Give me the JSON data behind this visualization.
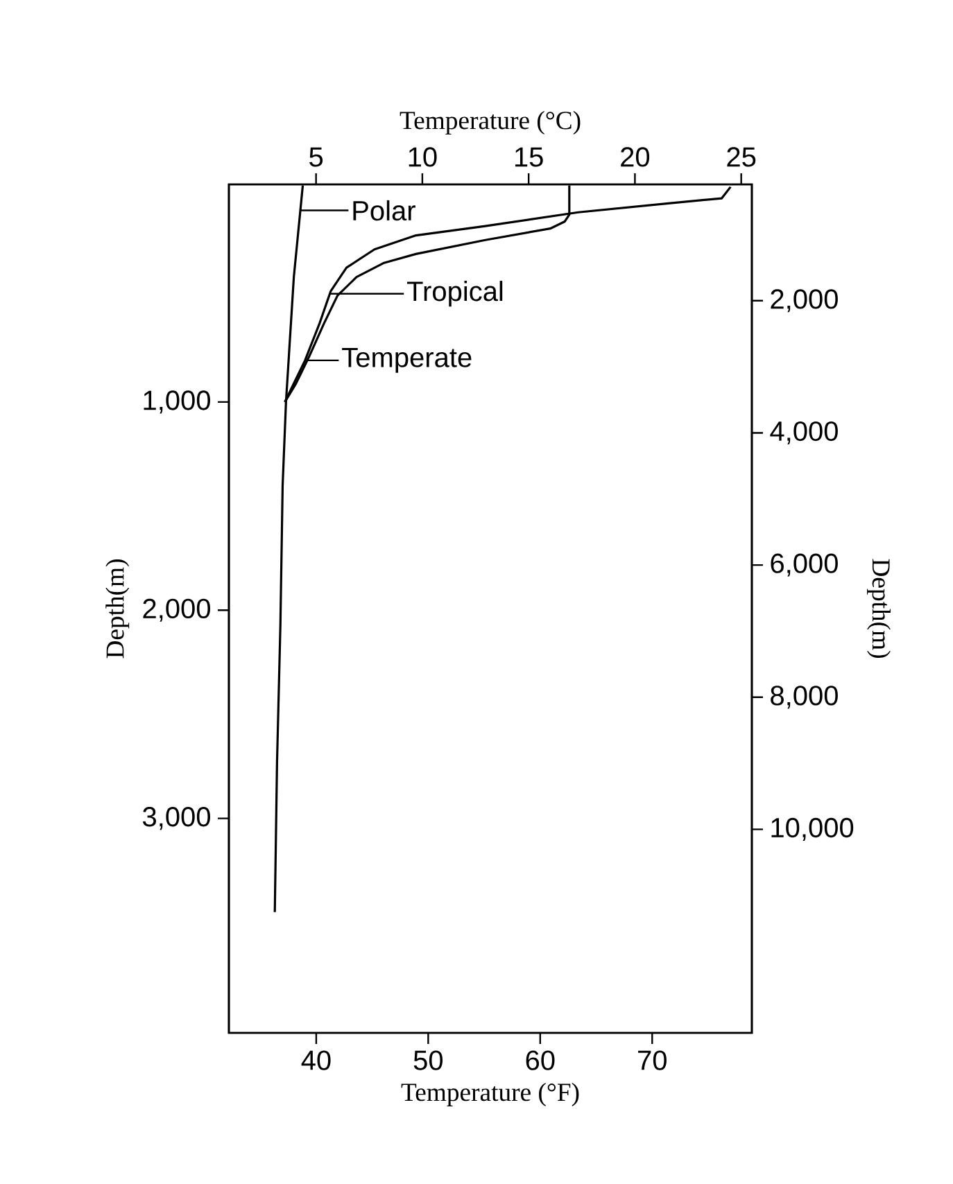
{
  "chart_data": {
    "type": "line",
    "legend": "top left",
    "xlabel": "Temperature (°F)",
    "x2label": "Temperature (°C)",
    "ylabel": "Depth(m)",
    "y2label": "Depth(m)",
    "xlim": [
      32.2,
      78.9
    ],
    "xticks": [
      40,
      50,
      60,
      70
    ],
    "x2lim": [
      0.9,
      25.5
    ],
    "x2ticks": [
      5,
      10,
      15,
      20,
      25
    ],
    "ylim": [
      4030,
      -45
    ],
    "yticks": [
      {
        "value": 1000,
        "label": "1,000"
      },
      {
        "value": 2000,
        "label": "2,000"
      },
      {
        "value": 3000,
        "label": "3,000"
      }
    ],
    "y2lim": [
      13080,
      240
    ],
    "y2ticks": [
      {
        "value": 2000,
        "label": "2,000"
      },
      {
        "value": 4000,
        "label": "4,000"
      },
      {
        "value": 6000,
        "label": "6,000"
      },
      {
        "value": 8000,
        "label": "8,000"
      },
      {
        "value": 10000,
        "label": "10,000"
      }
    ],
    "series": [
      {
        "name": "Polar",
        "color": "#000000",
        "x": [
          38.8,
          38.0,
          37.3,
          37.0,
          36.8,
          36.5,
          36.3
        ],
        "values": [
          -40,
          400,
          1000,
          1400,
          2070,
          2730,
          3450
        ]
      },
      {
        "name": "Tropical",
        "color": "#000000",
        "x": [
          77.0,
          76.2,
          71.6,
          63.4,
          55.1,
          48.9,
          45.2,
          42.7,
          41.3,
          40.3,
          39.0,
          37.8,
          37.2
        ],
        "values": [
          -33,
          22,
          45,
          89,
          155,
          200,
          267,
          355,
          467,
          622,
          800,
          933,
          1000
        ]
      },
      {
        "name": "Temperate",
        "color": "#000000",
        "x": [
          62.6,
          62.6,
          62.2,
          60.9,
          55.1,
          48.9,
          46.0,
          43.6,
          41.9,
          40.7,
          39.4,
          38.2,
          37.2
        ],
        "values": [
          -40,
          100,
          133,
          167,
          222,
          289,
          333,
          400,
          489,
          622,
          778,
          911,
          1000
        ]
      }
    ]
  }
}
